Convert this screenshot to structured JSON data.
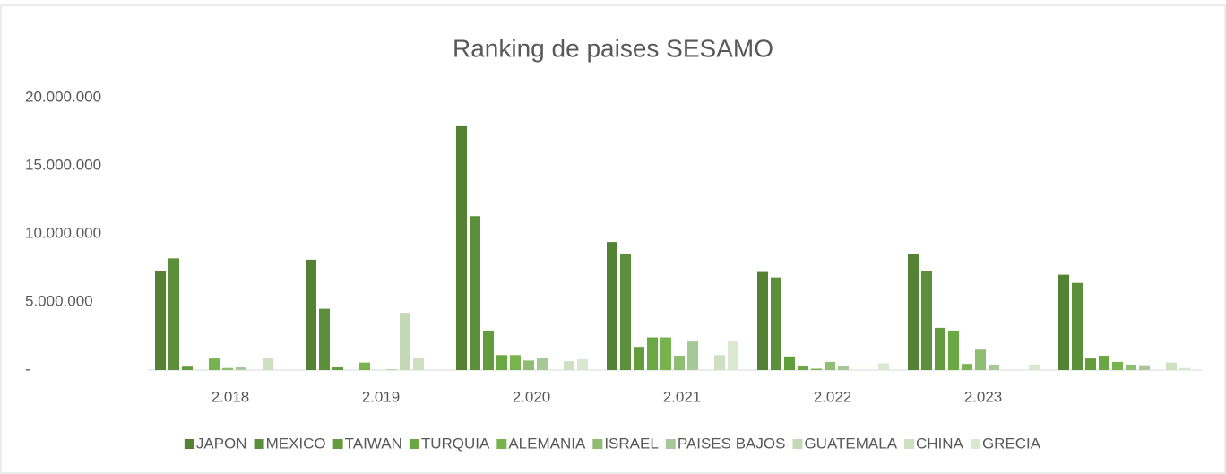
{
  "chart_data": {
    "type": "bar",
    "title": "Ranking de paises  SESAMO",
    "categories": [
      "2.018",
      "2.019",
      "2.020",
      "2.021",
      "2.022",
      "2.023",
      null
    ],
    "series": [
      {
        "name": "JAPON",
        "color": "#548235",
        "values": [
          7300000,
          8100000,
          17900000,
          9400000,
          7200000,
          8500000,
          7000000
        ]
      },
      {
        "name": "MEXICO",
        "color": "#5b8f39",
        "values": [
          8200000,
          4500000,
          11300000,
          8500000,
          6800000,
          7300000,
          6400000
        ]
      },
      {
        "name": "TAIWAN",
        "color": "#629c3d",
        "values": [
          250000,
          200000,
          2900000,
          1700000,
          1000000,
          3100000,
          850000
        ]
      },
      {
        "name": "TURQUIA",
        "color": "#6aa843",
        "values": [
          0,
          0,
          1100000,
          2400000,
          300000,
          2900000,
          1050000
        ]
      },
      {
        "name": "ALEMANIA",
        "color": "#78b44e",
        "values": [
          850000,
          550000,
          1100000,
          2400000,
          100000,
          450000,
          600000
        ]
      },
      {
        "name": "ISRAEL",
        "color": "#8fbd74",
        "values": [
          150000,
          0,
          700000,
          1050000,
          600000,
          1500000,
          400000
        ]
      },
      {
        "name": "PAISES BAJOS",
        "color": "#a6c896",
        "values": [
          200000,
          50000,
          900000,
          2100000,
          300000,
          400000,
          350000
        ]
      },
      {
        "name": "GUATEMALA",
        "color": "#c3d9b6",
        "values": [
          0,
          4200000,
          0,
          0,
          0,
          0,
          0
        ]
      },
      {
        "name": "CHINA",
        "color": "#cde0c1",
        "values": [
          850000,
          850000,
          650000,
          1100000,
          0,
          0,
          550000
        ]
      },
      {
        "name": "GRECIA",
        "color": "#dae8d1",
        "values": [
          0,
          0,
          800000,
          2100000,
          500000,
          400000,
          150000
        ]
      }
    ],
    "ylim": [
      0,
      20000000
    ],
    "yticks": [
      {
        "value": 0,
        "label": "-"
      },
      {
        "value": 5000000,
        "label": "5.000.000"
      },
      {
        "value": 10000000,
        "label": "10.000.000"
      },
      {
        "value": 15000000,
        "label": "15.000.000"
      },
      {
        "value": 20000000,
        "label": "20.000.000"
      }
    ],
    "grid": false,
    "legend": "bottom"
  }
}
